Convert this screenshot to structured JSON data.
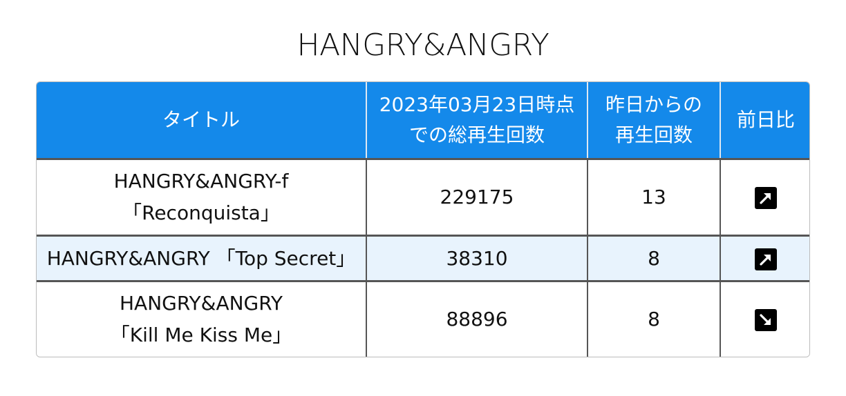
{
  "page": {
    "title": "HANGRY&ANGRY"
  },
  "table": {
    "headers": [
      {
        "line1": "タイトル",
        "line2": ""
      },
      {
        "line1": "2023年03月23日時点",
        "line2": "での総再生回数"
      },
      {
        "line1": "昨日からの",
        "line2": "再生回数"
      },
      {
        "line1": "前日比",
        "line2": ""
      }
    ],
    "rows": [
      {
        "title_line1": "HANGRY&ANGRY-f",
        "title_line2": "「Reconquista」",
        "total_plays": "229175",
        "plays_since_yesterday": "13",
        "trend_icon": "arrow-up-right-icon"
      },
      {
        "title_line1": "HANGRY&ANGRY 「Top Secret」",
        "title_line2": "",
        "total_plays": "38310",
        "plays_since_yesterday": "8",
        "trend_icon": "arrow-up-right-icon"
      },
      {
        "title_line1": "HANGRY&ANGRY",
        "title_line2": "「Kill Me Kiss Me」",
        "total_plays": "88896",
        "plays_since_yesterday": "8",
        "trend_icon": "arrow-down-right-icon"
      }
    ]
  },
  "colors": {
    "header_bg": "#1489ea",
    "header_text": "#ffffff",
    "stripe_bg": "#e8f3fd"
  }
}
